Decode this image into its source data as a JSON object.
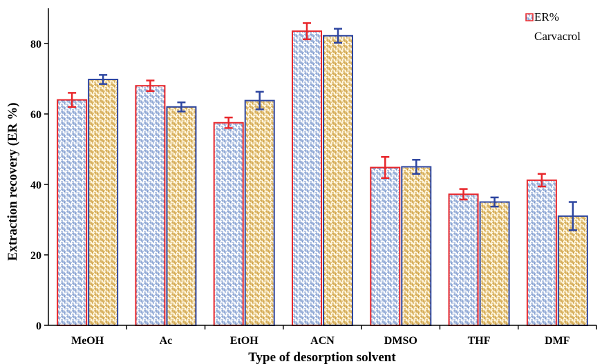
{
  "chart_data": {
    "type": "bar",
    "title": "",
    "xlabel": "Type of desorption solvent",
    "ylabel": "Extraction recovery (ER %)",
    "ylim": [
      0,
      90
    ],
    "yticks": [
      0,
      20,
      40,
      60,
      80
    ],
    "categories": [
      "MeOH",
      "Ac",
      "EtOH",
      "ACN",
      "DMSO",
      "THF",
      "DMF"
    ],
    "series": [
      {
        "name": "ER%",
        "values": [
          64,
          68,
          57.5,
          83.5,
          44.8,
          37.2,
          41.2
        ],
        "errors": [
          2,
          1.5,
          1.5,
          2.3,
          3,
          1.5,
          1.8
        ],
        "border_color": "#e8262b",
        "pattern_color": "#6f8fc8",
        "fill_color": "#ffffff"
      },
      {
        "name": "Carvacrol",
        "values": [
          69.8,
          62,
          63.8,
          82.2,
          45,
          35,
          31
        ],
        "errors": [
          1.3,
          1.3,
          2.5,
          2,
          2,
          1.3,
          4
        ],
        "border_color": "#2d45a0",
        "pattern_color": "#c9962e",
        "fill_color": "#fff6df"
      }
    ],
    "legend": {
      "position": "top-right"
    },
    "grid": false
  }
}
